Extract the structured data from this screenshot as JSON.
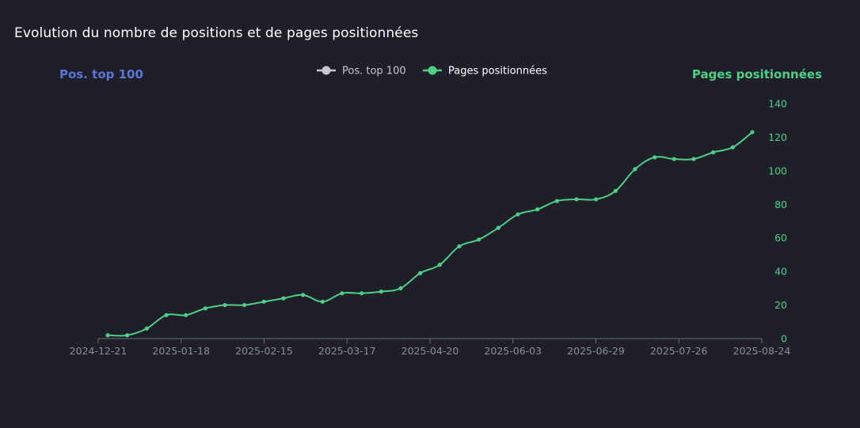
{
  "chart_data": {
    "type": "line",
    "title": "Evolution du nombre de positions et de pages positionnées",
    "legend": {
      "position": "top-center",
      "entries": [
        "Pos. top 100",
        "Pages positionnées"
      ]
    },
    "y_left": {
      "label": "Pos. top 100",
      "color": "#5b76d6"
    },
    "y_right": {
      "label": "Pages positionnées",
      "color": "#4fcf86",
      "ylim": [
        0,
        140
      ],
      "ticks": [
        0,
        20,
        40,
        60,
        80,
        100,
        120,
        140
      ]
    },
    "x_ticks": [
      "2024-12-21",
      "2025-01-18",
      "2025-02-15",
      "2025-03-17",
      "2025-04-20",
      "2025-06-03",
      "2025-06-29",
      "2025-07-26",
      "2025-08-24"
    ],
    "grid": false,
    "series": [
      {
        "name": "Pos. top 100",
        "color": "#c7c7cf",
        "values": []
      },
      {
        "name": "Pages positionnées",
        "color": "#4fcf86",
        "axis": "right",
        "values": [
          2,
          2,
          6,
          14,
          14,
          18,
          20,
          20,
          22,
          24,
          26,
          22,
          27,
          27,
          28,
          30,
          39,
          44,
          55,
          59,
          66,
          74,
          77,
          82,
          83,
          83,
          88,
          101,
          108,
          107,
          107,
          111,
          114,
          123
        ]
      }
    ]
  }
}
